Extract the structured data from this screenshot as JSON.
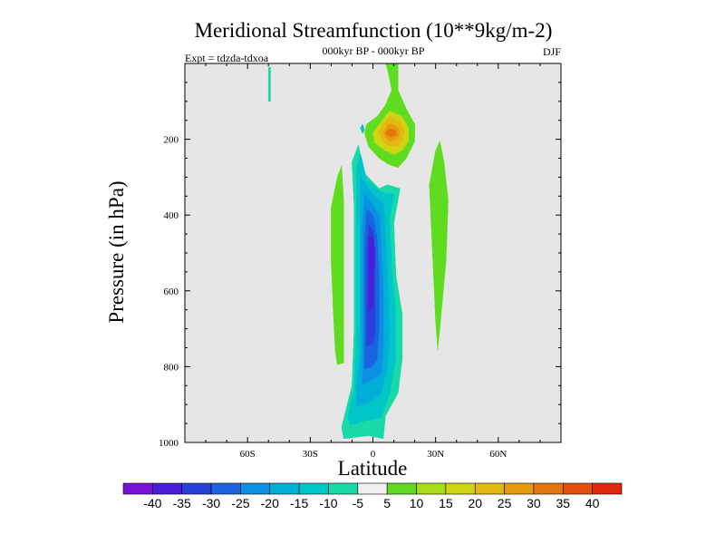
{
  "chart_data": {
    "type": "heatmap",
    "title": "Meridional Streamfunction (10**9kg/m-2)",
    "subtitle": "000kyr BP - 000kyr BP",
    "left_annotation": "Expt = tdzda-tdxoa",
    "right_annotation": "DJF",
    "xlabel": "Latitude",
    "ylabel": "Pressure (in hPa)",
    "xlim": [
      -90,
      90
    ],
    "ylim": [
      1000,
      0
    ],
    "x_ticks": [
      {
        "value": -60,
        "label": "60S"
      },
      {
        "value": -30,
        "label": "30S"
      },
      {
        "value": 0,
        "label": "0"
      },
      {
        "value": 30,
        "label": "30N"
      },
      {
        "value": 60,
        "label": "60N"
      }
    ],
    "y_ticks": [
      {
        "value": 200,
        "label": "200"
      },
      {
        "value": 400,
        "label": "400"
      },
      {
        "value": 600,
        "label": "600"
      },
      {
        "value": 800,
        "label": "800"
      },
      {
        "value": 1000,
        "label": "1000"
      }
    ],
    "contour_levels": [
      -40,
      -35,
      -30,
      -25,
      -20,
      -15,
      -10,
      -5,
      5,
      10,
      15,
      20,
      25,
      30,
      35,
      40
    ],
    "colorbar_labels": [
      "-40",
      "-35",
      "-30",
      "-25",
      "-20",
      "-15",
      "-10",
      "-5",
      "5",
      "10",
      "15",
      "20",
      "25",
      "30",
      "35",
      "40"
    ],
    "colorbar_colors": [
      "#7a10d6",
      "#4c1dd9",
      "#2840d8",
      "#1b63e0",
      "#0a8fe3",
      "#00aed8",
      "#00c6c8",
      "#1ad9a8",
      "#f0f0f0",
      "#5fdc1f",
      "#a6dc1a",
      "#cfd415",
      "#e4b812",
      "#e69a0e",
      "#e6740c",
      "#e4500a",
      "#e0280c"
    ],
    "background_color": "#e6e6e6",
    "regions": [
      {
        "name": "sh-negative-cell-outer",
        "color": "#1ad9a8",
        "points": [
          [
            -14,
            990
          ],
          [
            -2,
            982
          ],
          [
            5,
            990
          ],
          [
            6,
            930
          ],
          [
            12,
            870
          ],
          [
            14,
            780
          ],
          [
            14,
            660
          ],
          [
            11,
            560
          ],
          [
            10,
            420
          ],
          [
            13,
            330
          ],
          [
            7,
            320
          ],
          [
            3,
            330
          ],
          [
            -4,
            290
          ],
          [
            -7,
            215
          ],
          [
            -10,
            260
          ],
          [
            -9,
            380
          ],
          [
            -9,
            520
          ],
          [
            -9,
            700
          ],
          [
            -10,
            850
          ],
          [
            -15,
            960
          ]
        ]
      },
      {
        "name": "sh-negative-cell-m10",
        "color": "#00c6c8",
        "points": [
          [
            -11,
            955
          ],
          [
            -3,
            942
          ],
          [
            4,
            935
          ],
          [
            8,
            870
          ],
          [
            11,
            780
          ],
          [
            11,
            660
          ],
          [
            9,
            540
          ],
          [
            8,
            410
          ],
          [
            10,
            345
          ],
          [
            4,
            340
          ],
          [
            -3,
            305
          ],
          [
            -6,
            238
          ],
          [
            -8,
            280
          ],
          [
            -8,
            400
          ],
          [
            -8,
            560
          ],
          [
            -8,
            720
          ],
          [
            -9,
            860
          ],
          [
            -12,
            930
          ]
        ]
      },
      {
        "name": "sh-negative-cell-m15",
        "color": "#00aed8",
        "points": [
          [
            -8,
            905
          ],
          [
            -2,
            895
          ],
          [
            4,
            870
          ],
          [
            7,
            800
          ],
          [
            8,
            690
          ],
          [
            7,
            560
          ],
          [
            6,
            440
          ],
          [
            5,
            370
          ],
          [
            0,
            345
          ],
          [
            -4,
            315
          ],
          [
            -6,
            300
          ],
          [
            -6,
            420
          ],
          [
            -6,
            580
          ],
          [
            -6,
            760
          ],
          [
            -8,
            860
          ]
        ]
      },
      {
        "name": "sh-negative-cell-m20",
        "color": "#0a8fe3",
        "points": [
          [
            -5,
            845
          ],
          [
            0,
            835
          ],
          [
            4,
            815
          ],
          [
            5,
            740
          ],
          [
            5,
            620
          ],
          [
            4,
            490
          ],
          [
            3,
            400
          ],
          [
            -1,
            365
          ],
          [
            -4,
            345
          ],
          [
            -5,
            420
          ],
          [
            -5,
            560
          ],
          [
            -5,
            720
          ]
        ]
      },
      {
        "name": "sh-negative-cell-m25",
        "color": "#1b63e0",
        "points": [
          [
            -4,
            805
          ],
          [
            0,
            798
          ],
          [
            2,
            780
          ],
          [
            3,
            690
          ],
          [
            3,
            560
          ],
          [
            2,
            460
          ],
          [
            0,
            400
          ],
          [
            -3,
            385
          ],
          [
            -4,
            470
          ],
          [
            -4,
            640
          ]
        ]
      },
      {
        "name": "sh-negative-cell-m30",
        "color": "#2840d8",
        "points": [
          [
            -3,
            745
          ],
          [
            0,
            738
          ],
          [
            1,
            710
          ],
          [
            1,
            600
          ],
          [
            1,
            500
          ],
          [
            0,
            440
          ],
          [
            -2,
            425
          ],
          [
            -3,
            500
          ],
          [
            -3,
            640
          ]
        ]
      },
      {
        "name": "sh-negative-cell-core",
        "color": "#4c1dd9",
        "points": [
          [
            -2,
            650
          ],
          [
            0,
            640
          ],
          [
            0,
            580
          ],
          [
            1,
            500
          ],
          [
            0,
            460
          ],
          [
            -2,
            455
          ],
          [
            -2,
            540
          ]
        ]
      },
      {
        "name": "sh-positive-band",
        "color": "#5fdc1f",
        "points": [
          [
            -17,
            795
          ],
          [
            -14,
            790
          ],
          [
            -14,
            680
          ],
          [
            -14,
            500
          ],
          [
            -14,
            360
          ],
          [
            -15,
            270
          ],
          [
            -17,
            300
          ],
          [
            -20,
            380
          ],
          [
            -20,
            520
          ],
          [
            -19,
            650
          ],
          [
            -18,
            760
          ]
        ]
      },
      {
        "name": "nh-positive-band",
        "color": "#5fdc1f",
        "points": [
          [
            31,
            755
          ],
          [
            32,
            700
          ],
          [
            35,
            520
          ],
          [
            36,
            360
          ],
          [
            34,
            260
          ],
          [
            32,
            205
          ],
          [
            30,
            230
          ],
          [
            27,
            320
          ],
          [
            28,
            440
          ],
          [
            29,
            560
          ],
          [
            30,
            680
          ]
        ]
      },
      {
        "name": "upper-positive-cell",
        "color": "#5fdc1f",
        "points": [
          [
            9,
            70
          ],
          [
            7,
            15
          ],
          [
            6,
            0
          ],
          [
            12,
            0
          ],
          [
            12,
            70
          ],
          [
            16,
            120
          ],
          [
            20,
            160
          ],
          [
            20,
            205
          ],
          [
            16,
            250
          ],
          [
            12,
            275
          ],
          [
            7,
            265
          ],
          [
            3,
            250
          ],
          [
            -2,
            220
          ],
          [
            -4,
            185
          ],
          [
            -3,
            160
          ],
          [
            2,
            140
          ],
          [
            6,
            110
          ]
        ]
      },
      {
        "name": "upper-positive-cell-10",
        "color": "#cfd415",
        "points": [
          [
            8,
            125
          ],
          [
            14,
            140
          ],
          [
            17,
            170
          ],
          [
            17,
            205
          ],
          [
            14,
            230
          ],
          [
            10,
            240
          ],
          [
            6,
            230
          ],
          [
            1,
            210
          ],
          [
            0,
            185
          ],
          [
            3,
            160
          ]
        ]
      },
      {
        "name": "upper-positive-cell-15",
        "color": "#e4b812",
        "points": [
          [
            8,
            140
          ],
          [
            13,
            155
          ],
          [
            15,
            180
          ],
          [
            14,
            205
          ],
          [
            11,
            220
          ],
          [
            7,
            215
          ],
          [
            4,
            200
          ],
          [
            3,
            180
          ],
          [
            5,
            160
          ]
        ]
      },
      {
        "name": "upper-positive-cell-20",
        "color": "#e69a0e",
        "points": [
          [
            8,
            158
          ],
          [
            12,
            170
          ],
          [
            13,
            185
          ],
          [
            11,
            200
          ],
          [
            8,
            205
          ],
          [
            6,
            195
          ],
          [
            5,
            180
          ]
        ]
      },
      {
        "name": "upper-positive-cell-core",
        "color": "#e6740c",
        "points": [
          [
            8,
            172
          ],
          [
            11,
            178
          ],
          [
            11,
            188
          ],
          [
            9,
            194
          ],
          [
            7,
            190
          ],
          [
            6,
            182
          ]
        ]
      },
      {
        "name": "high-latitude-patch",
        "color": "#1ad9a8",
        "points": [
          [
            -49,
            100
          ],
          [
            -49,
            10
          ],
          [
            -50,
            10
          ],
          [
            -50,
            100
          ]
        ]
      },
      {
        "name": "tropopause-sliver",
        "color": "#00c6c8",
        "points": [
          [
            -6,
            170
          ],
          [
            -5,
            160
          ],
          [
            -4,
            175
          ],
          [
            -5,
            185
          ]
        ]
      }
    ]
  }
}
